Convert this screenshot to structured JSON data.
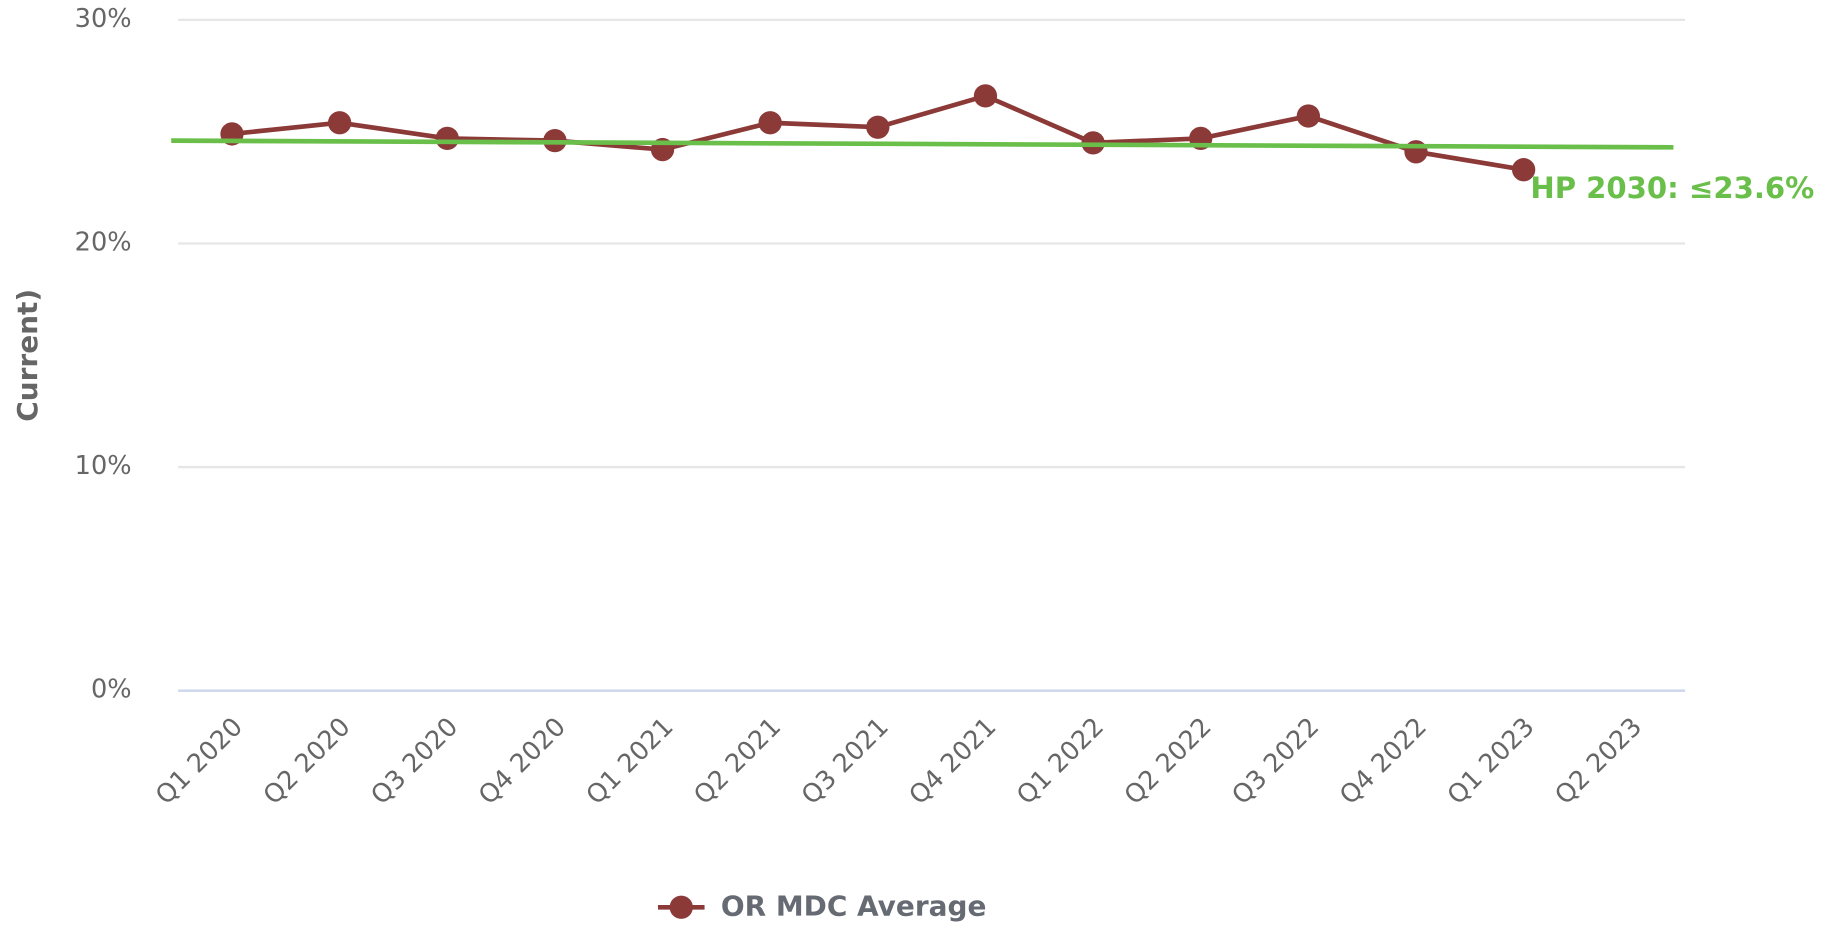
{
  "chart_data": {
    "type": "line",
    "y_label": "Current)",
    "categories": [
      "Q1 2020",
      "Q2 2020",
      "Q3 2020",
      "Q4 2020",
      "Q1 2021",
      "Q2 2021",
      "Q3 2021",
      "Q4 2021",
      "Q1 2022",
      "Q2 2022",
      "Q3 2022",
      "Q4 2022",
      "Q1 2023",
      "Q2 2023"
    ],
    "series": [
      {
        "name": "OR MDC Average",
        "color": "#8b3a38",
        "values": [
          24.9,
          25.4,
          24.7,
          24.6,
          24.2,
          25.4,
          25.2,
          26.6,
          24.5,
          24.7,
          25.7,
          24.1,
          23.3,
          null
        ]
      }
    ],
    "target_line": {
      "label": "HP 2030: ≤23.6%",
      "color": "#6abf4b",
      "values": [
        24.6,
        24.3
      ]
    },
    "ylim": [
      0,
      30
    ],
    "yticks": [
      {
        "value": 0,
        "label": "0%"
      },
      {
        "value": 10,
        "label": "10%"
      },
      {
        "value": 20,
        "label": "20%"
      },
      {
        "value": 30,
        "label": "30%"
      }
    ],
    "grid": true,
    "legend": "bottom"
  }
}
